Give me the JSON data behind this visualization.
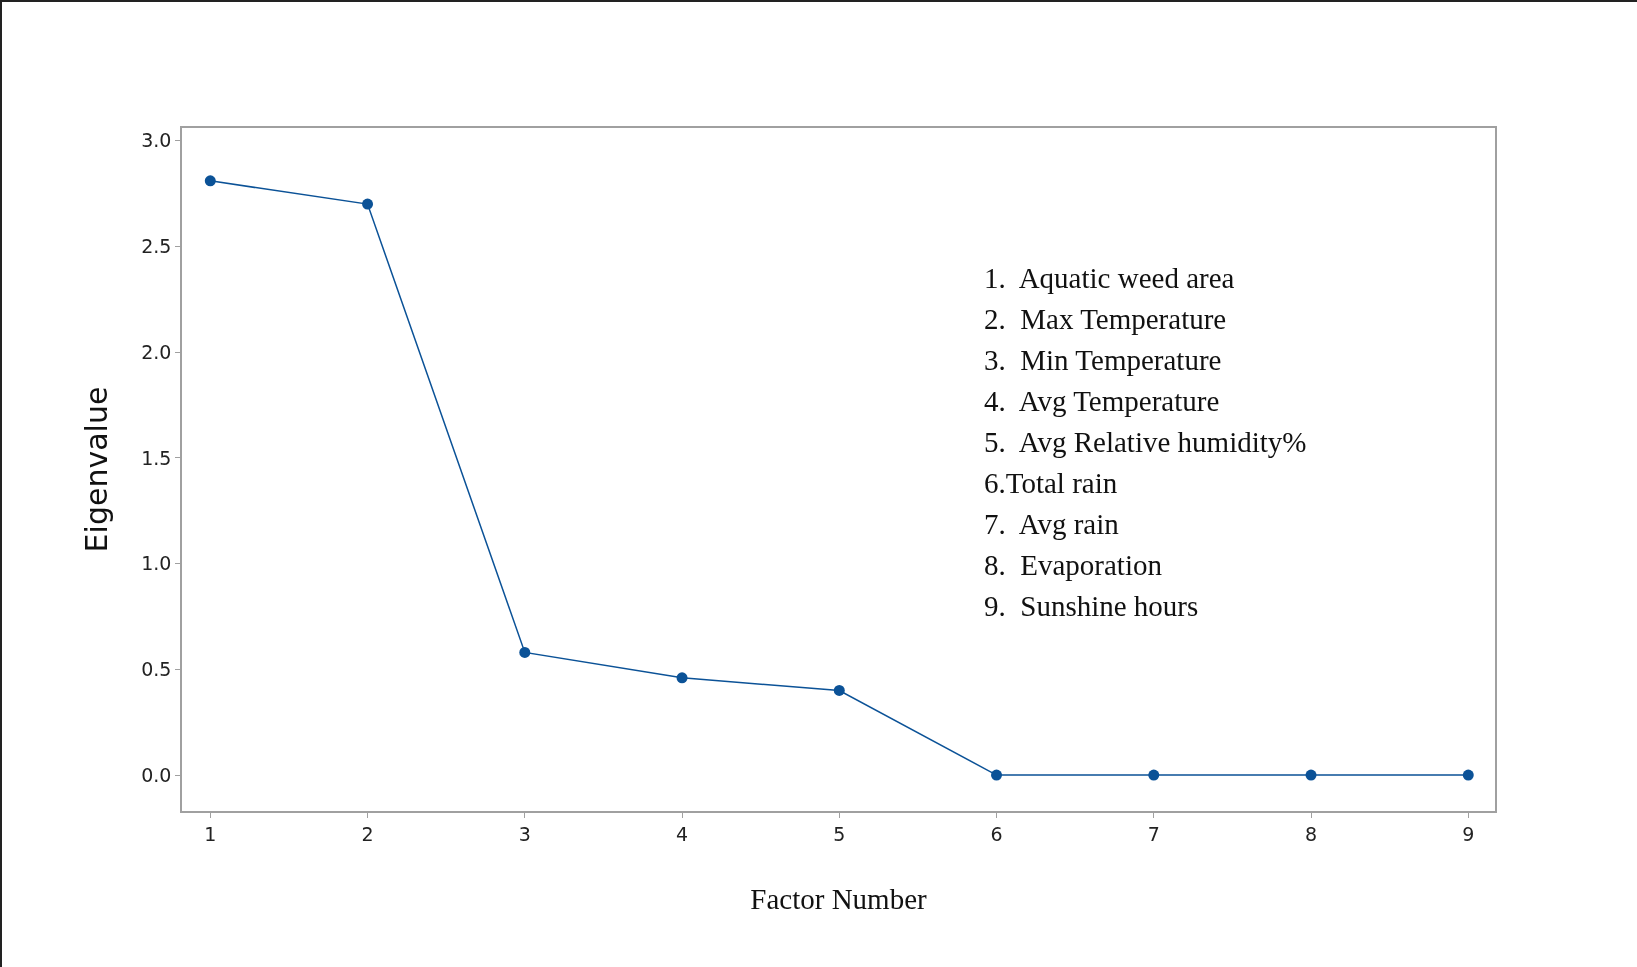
{
  "chart_data": {
    "type": "line",
    "xlabel": "Factor Number",
    "ylabel": "Eigenvalue",
    "x": [
      1,
      2,
      3,
      4,
      5,
      6,
      7,
      8,
      9
    ],
    "series": [
      {
        "color": "#0b5297",
        "values": [
          2.81,
          2.7,
          0.58,
          0.46,
          0.4,
          0,
          0,
          0,
          0
        ]
      }
    ],
    "xlim": [
      0.82,
      9.17
    ],
    "xticks": [
      1,
      2,
      3,
      4,
      5,
      6,
      7,
      8,
      9
    ],
    "ylim": [
      -0.17,
      3.06
    ],
    "yticks": [
      {
        "value": 0,
        "label": "0.0"
      },
      {
        "value": 0.5,
        "label": "0.5"
      },
      {
        "value": 1,
        "label": "1.0"
      },
      {
        "value": 1.5,
        "label": "1.5"
      },
      {
        "value": 2,
        "label": "2.0"
      },
      {
        "value": 2.5,
        "label": "2.5"
      },
      {
        "value": 3,
        "label": "3.0"
      }
    ],
    "grid": false,
    "legend": false,
    "marker": "circle",
    "line_style": "solid",
    "annotations": [
      "1.  Aquatic weed area",
      "2.  Max Temperature",
      "3.  Min Temperature",
      "4.  Avg Temperature",
      "5.  Avg Relative humidity%",
      "6.Total rain",
      "7.  Avg rain",
      "8.  Evaporation",
      "9.  Sunshine hours"
    ]
  }
}
